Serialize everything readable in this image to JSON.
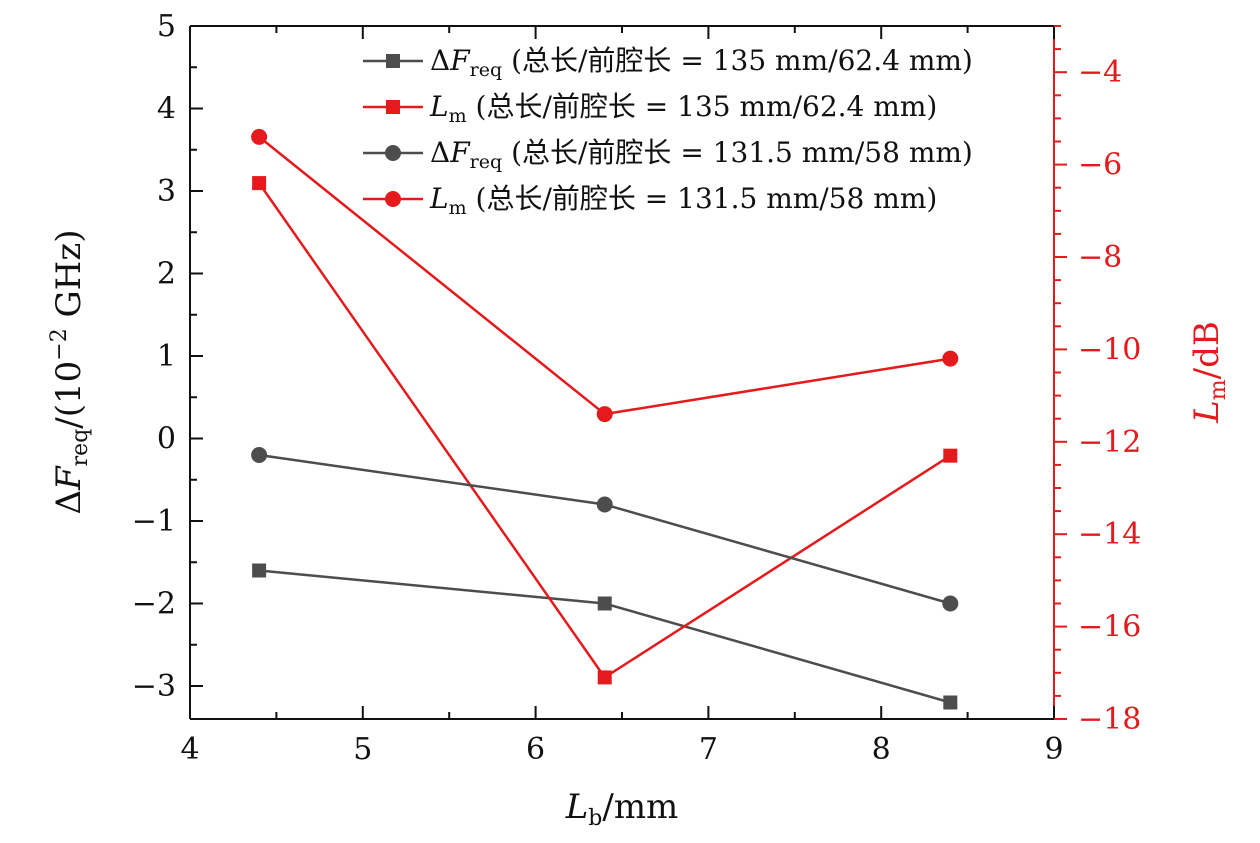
{
  "chart_data": {
    "type": "line",
    "xlabel": "Lb/mm",
    "ylabel_left": "ΔFreq/(10−2 GHz)",
    "ylabel_right": "Lm/dB",
    "xlim": [
      4,
      9
    ],
    "ylim_left": [
      -3.4,
      5
    ],
    "ylim_right": [
      -18,
      -3
    ],
    "x_ticks": [
      4,
      5,
      6,
      7,
      8,
      9
    ],
    "x_tick_labels": [
      "4",
      "5",
      "6",
      "7",
      "8",
      "9"
    ],
    "y_left_ticks": [
      -3,
      -2,
      -1,
      0,
      1,
      2,
      3,
      4,
      5
    ],
    "y_left_tick_labels": [
      "−3",
      "−2",
      "−1",
      "0",
      "1",
      "2",
      "3",
      "4",
      "5"
    ],
    "y_right_ticks": [
      -18,
      -16,
      -14,
      -12,
      -10,
      -8,
      -6,
      -4
    ],
    "y_right_tick_labels": [
      "−18",
      "−16",
      "−14",
      "−12",
      "−10",
      "−8",
      "−6",
      "−4"
    ],
    "grid": false,
    "legend_placement": "top-right",
    "colors": {
      "gray": "#4d4d4d",
      "red": "#e41a1c",
      "axis": "#111111"
    },
    "series": [
      {
        "name": "ΔFreq (总长/前腔长 = 135 mm/62.4 mm)",
        "axis": "left",
        "marker": "square",
        "color": "#4d4d4d",
        "x": [
          4.4,
          6.4,
          8.4
        ],
        "y": [
          -1.6,
          -2.0,
          -3.2
        ]
      },
      {
        "name": "Lm (总长/前腔长 = 135 mm/62.4 mm)",
        "axis": "right",
        "marker": "square",
        "color": "#e41a1c",
        "x": [
          4.4,
          6.4,
          8.4
        ],
        "y": [
          -6.4,
          -17.1,
          -12.3
        ]
      },
      {
        "name": "ΔFreq (总长/前腔长 = 131.5 mm/58 mm)",
        "axis": "left",
        "marker": "circle",
        "color": "#4d4d4d",
        "x": [
          4.4,
          6.4,
          8.4
        ],
        "y": [
          -0.2,
          -0.8,
          -2.0
        ]
      },
      {
        "name": "Lm (总长/前腔长 = 131.5 mm/58 mm)",
        "axis": "right",
        "marker": "circle",
        "color": "#e41a1c",
        "x": [
          4.4,
          6.4,
          8.4
        ],
        "y": [
          -5.4,
          -11.4,
          -10.2
        ]
      }
    ]
  }
}
